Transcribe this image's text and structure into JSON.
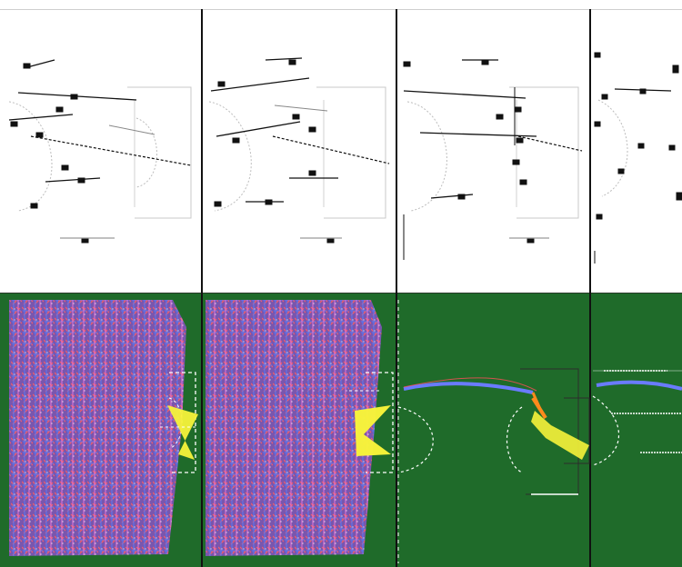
{
  "colors": {
    "top_bg": "#ffffff",
    "bottom_bg": "#1f6b2a",
    "line_dark": "#111111",
    "line_grey": "#bdbdbd",
    "trace_red": "#ff4d5a",
    "trace_blue": "#6a7bff",
    "trace_pink": "#ff7be4",
    "highlight_yellow": "#f7f33a",
    "highlight_orange": "#ff8a1c",
    "field_line": "#ffffff"
  },
  "panels": {
    "top": [
      {
        "id": "top-panel-1"
      },
      {
        "id": "top-panel-2"
      },
      {
        "id": "top-panel-3"
      },
      {
        "id": "top-panel-4"
      }
    ],
    "bottom": [
      {
        "id": "bottom-panel-1"
      },
      {
        "id": "bottom-panel-2"
      },
      {
        "id": "bottom-panel-3"
      },
      {
        "id": "bottom-panel-4"
      }
    ]
  }
}
